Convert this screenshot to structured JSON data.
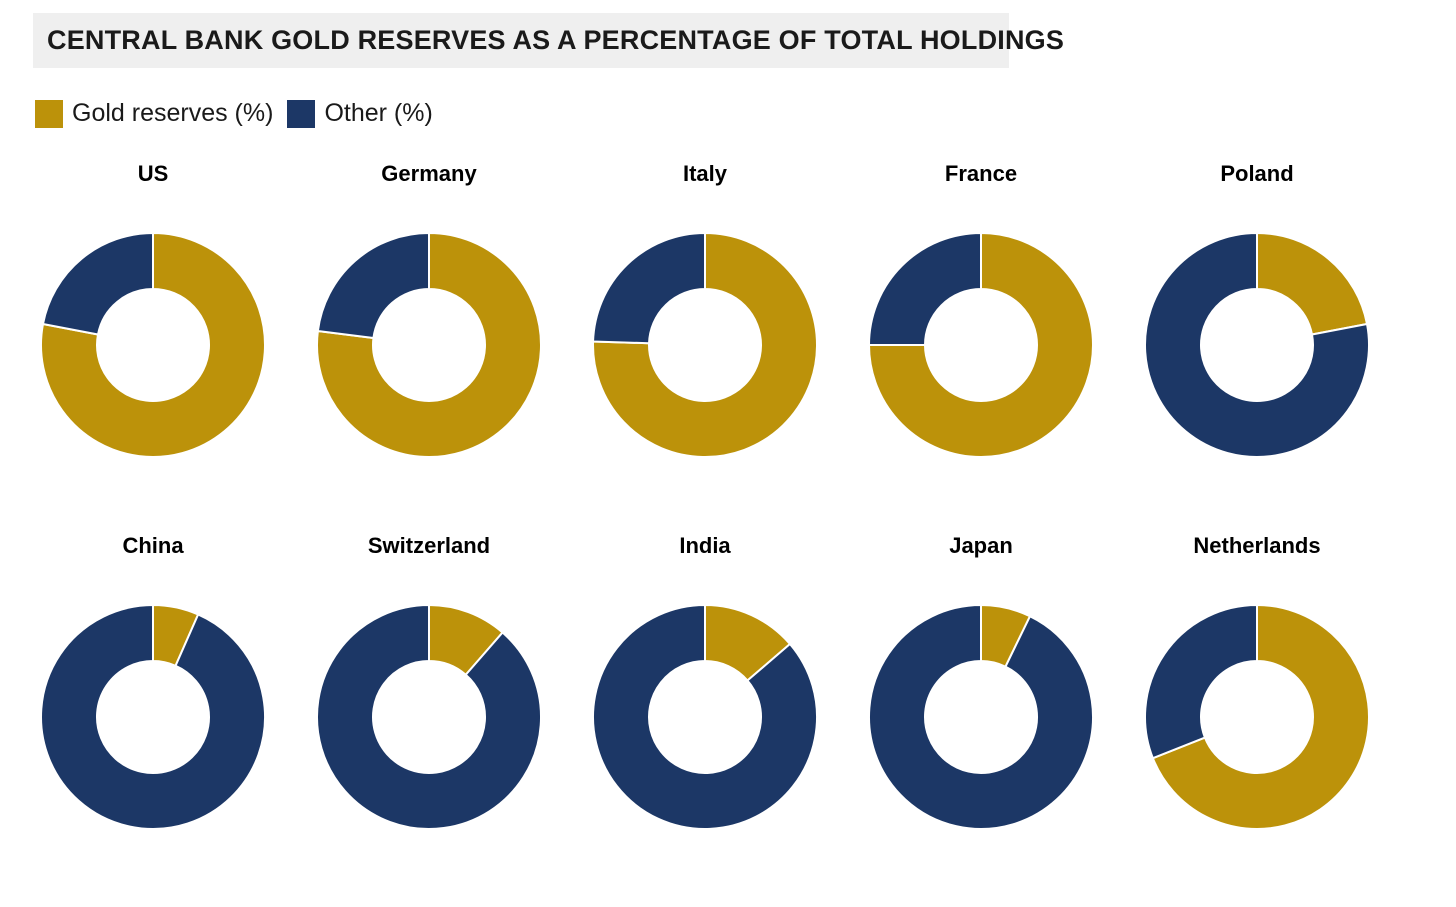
{
  "title": "CENTRAL BANK GOLD RESERVES AS A PERCENTAGE OF TOTAL HOLDINGS",
  "colors": {
    "gold": "#bc920a",
    "navy": "#1c3766",
    "title_bar_bg": "#efefef",
    "text": "#1a1a1a"
  },
  "legend": {
    "items": [
      {
        "label": "Gold reserves (%)",
        "color": "#bc920a"
      },
      {
        "label": "Other (%)",
        "color": "#1c3766"
      }
    ]
  },
  "chart_data": {
    "type": "pie",
    "subtype": "donut",
    "title": "CENTRAL BANK GOLD RESERVES AS A PERCENTAGE OF TOTAL HOLDINGS",
    "legend_entries": [
      "Gold reserves (%)",
      "Other (%)"
    ],
    "layout": {
      "rows": 2,
      "columns": 5,
      "hole_ratio": 0.5,
      "start_angle": "top",
      "direction": "clockwise",
      "slice_separator_color": "#ffffff"
    },
    "charts": [
      {
        "label": "US",
        "gold_reserves_pct": 78,
        "other_pct": 22
      },
      {
        "label": "Germany",
        "gold_reserves_pct": 77,
        "other_pct": 23
      },
      {
        "label": "Italy",
        "gold_reserves_pct": 75.5,
        "other_pct": 24.5
      },
      {
        "label": "France",
        "gold_reserves_pct": 75,
        "other_pct": 25
      },
      {
        "label": "Poland",
        "gold_reserves_pct": 22,
        "other_pct": 78
      },
      {
        "label": "China",
        "gold_reserves_pct": 6.6,
        "other_pct": 93.4
      },
      {
        "label": "Switzerland",
        "gold_reserves_pct": 11.4,
        "other_pct": 88.6
      },
      {
        "label": "India",
        "gold_reserves_pct": 13.7,
        "other_pct": 86.3
      },
      {
        "label": "Japan",
        "gold_reserves_pct": 7.2,
        "other_pct": 92.8
      },
      {
        "label": "Netherlands",
        "gold_reserves_pct": 69,
        "other_pct": 31
      }
    ]
  }
}
